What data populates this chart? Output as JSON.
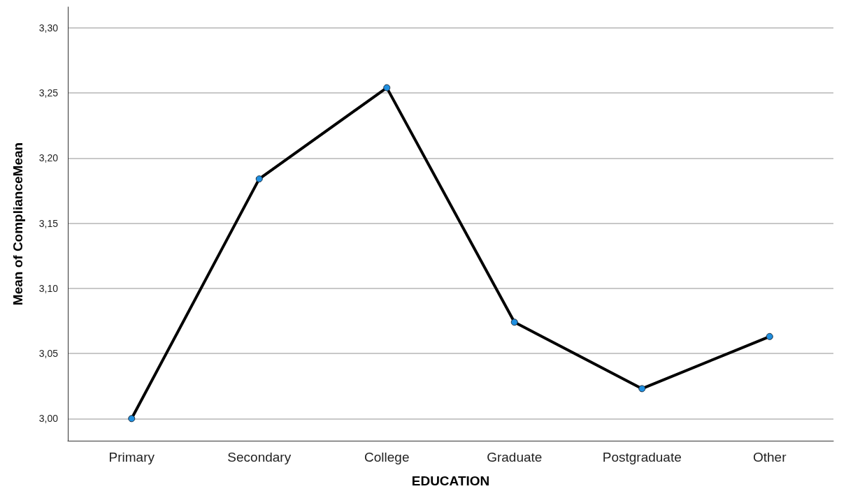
{
  "chart_data": {
    "type": "line",
    "xlabel": "EDUCATION",
    "ylabel": "Mean of ComplianceMean",
    "categories": [
      "Primary",
      "Secondary",
      "College",
      "Graduate",
      "Postgraduate",
      "Other"
    ],
    "series": [
      {
        "color": "#000000",
        "values": [
          3.0,
          3.184,
          3.254,
          3.074,
          3.023,
          3.063
        ]
      }
    ],
    "ylim": [
      2.983,
      3.316
    ],
    "yticks": [
      {
        "value": 3.0,
        "label": "3,00"
      },
      {
        "value": 3.05,
        "label": "3,05"
      },
      {
        "value": 3.1,
        "label": "3,10"
      },
      {
        "value": 3.15,
        "label": "3,15"
      },
      {
        "value": 3.2,
        "label": "3,20"
      },
      {
        "value": 3.25,
        "label": "3,25"
      },
      {
        "value": 3.3,
        "label": "3,30"
      }
    ],
    "grid": "y",
    "marker": "circle",
    "line_style": "solid"
  }
}
